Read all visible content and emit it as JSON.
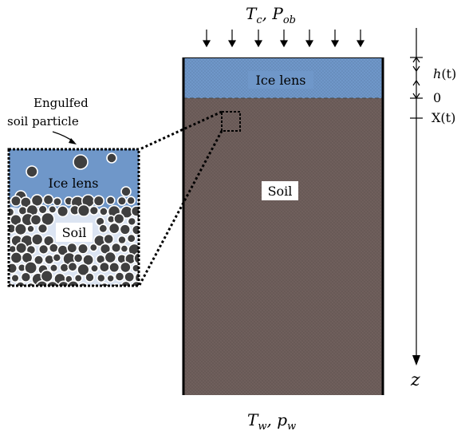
{
  "top_label": {
    "main": "T",
    "sub": "c",
    "sep": ",  ",
    "main2": "P",
    "sub2": "ob"
  },
  "bottom_label": {
    "main": "T",
    "sub": "w",
    "sep": ",  ",
    "main2": "p",
    "sub2": "w"
  },
  "column": {
    "ice_label": "Ice lens",
    "soil_label": "Soil",
    "ice_color": "#6f97c9",
    "soil_color": "#6f5f5c"
  },
  "inset": {
    "caption_line1": "Engulfed",
    "caption_line2": "soil particle",
    "ice_label": "Ice lens",
    "soil_label": "Soil",
    "pore_color": "#dbe4f2",
    "particle_color": "#3f3f3f"
  },
  "axis": {
    "h_label_main": "h",
    "h_label_arg": "(t)",
    "zero_label": "0",
    "x_label": "X(t)",
    "z_label": "z"
  }
}
